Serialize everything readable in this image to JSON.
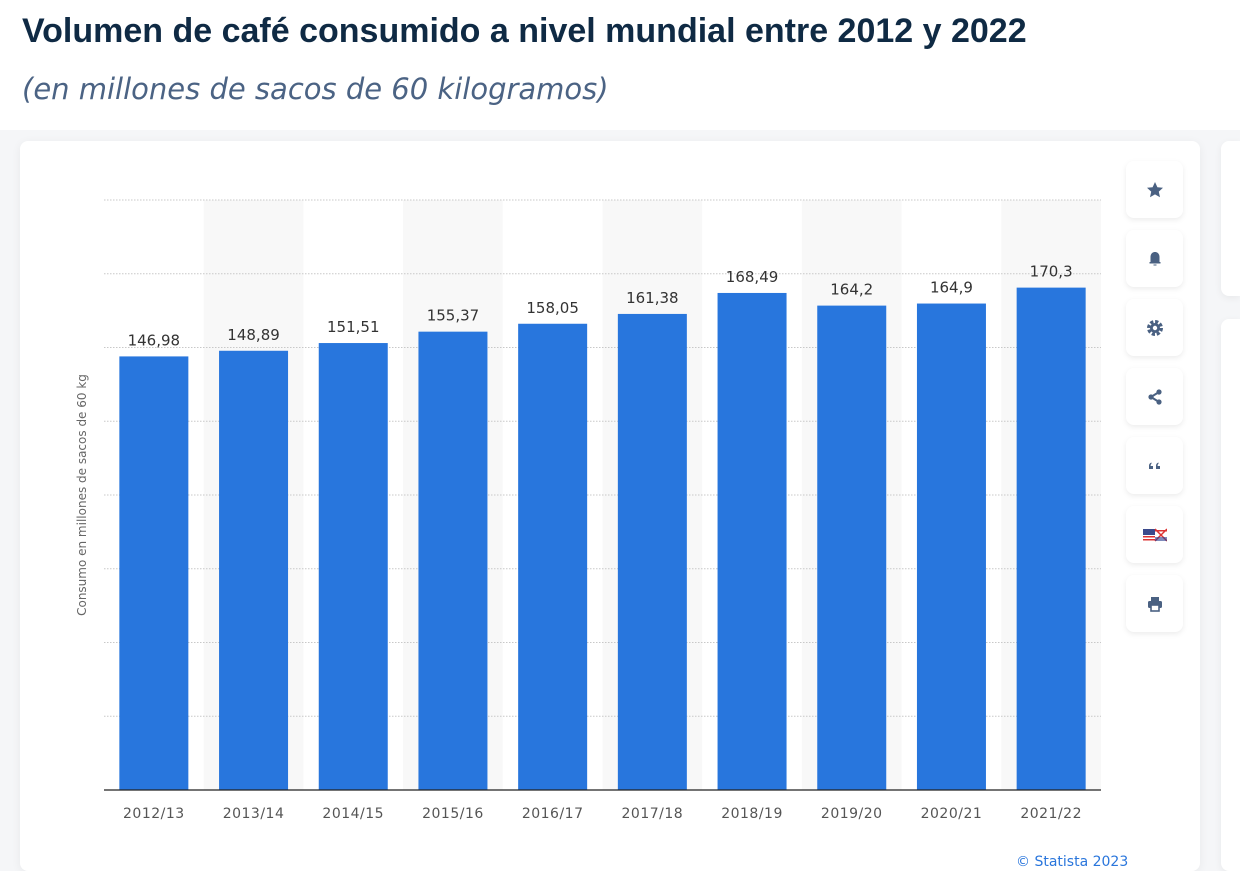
{
  "header": {
    "title": "Volumen de café consumido a nivel mundial entre 2012 y 2022",
    "subtitle": "(en millones de sacos de 60 kilogramos)"
  },
  "toolbar": {
    "icons": [
      "star-icon",
      "bell-icon",
      "gear-icon",
      "share-icon",
      "quote-icon",
      "flag-icon",
      "print-icon"
    ]
  },
  "credit": "© Statista 2023",
  "chart_data": {
    "type": "bar",
    "title": "",
    "xlabel": "",
    "ylabel": "Consumo en millones de sacos de 60 kg",
    "ylim": [
      0,
      200
    ],
    "grid": true,
    "bar_color": "#2876dd",
    "categories": [
      "2012/13",
      "2013/14",
      "2014/15",
      "2015/16",
      "2016/17",
      "2017/18",
      "2018/19",
      "2019/20",
      "2020/21",
      "2021/22"
    ],
    "values": [
      146.98,
      148.89,
      151.51,
      155.37,
      158.05,
      161.38,
      168.49,
      164.2,
      164.9,
      170.3
    ],
    "labels": [
      "146,98",
      "148,89",
      "151,51",
      "155,37",
      "158,05",
      "161,38",
      "168,49",
      "164,2",
      "164,9",
      "170,3"
    ]
  }
}
